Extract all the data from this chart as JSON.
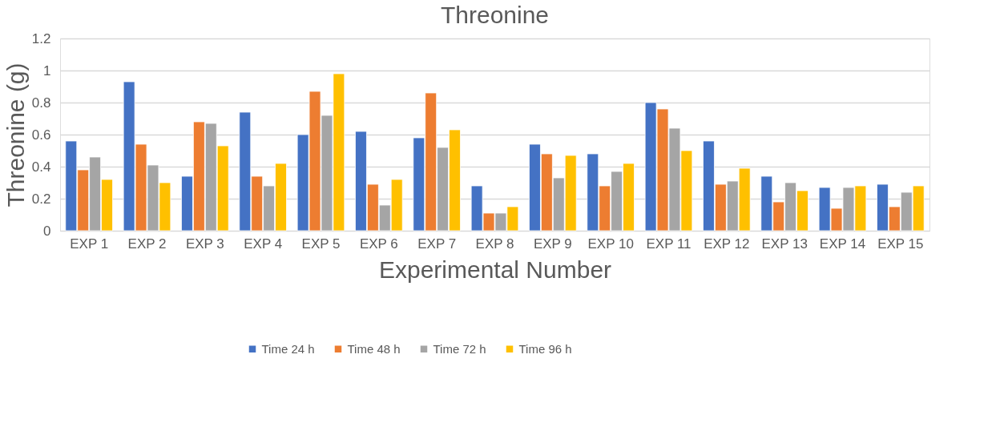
{
  "chart_data": {
    "type": "bar",
    "title": "Threonine",
    "xlabel": "Experimental Number",
    "ylabel": "Threonine  (g)",
    "categories": [
      "EXP 1",
      "EXP 2",
      "EXP 3",
      "EXP 4",
      "EXP 5",
      "EXP 6",
      "EXP 7",
      "EXP 8",
      "EXP 9",
      "EXP 10",
      "EXP 11",
      "EXP 12",
      "EXP 13",
      "EXP 14",
      "EXP 15"
    ],
    "series": [
      {
        "name": "Time 24 h",
        "color": "#4472c4",
        "values": [
          0.56,
          0.93,
          0.34,
          0.74,
          0.6,
          0.62,
          0.58,
          0.28,
          0.54,
          0.48,
          0.8,
          0.56,
          0.34,
          0.27,
          0.29
        ]
      },
      {
        "name": "Time 48 h",
        "color": "#ed7d31",
        "values": [
          0.38,
          0.54,
          0.68,
          0.34,
          0.87,
          0.29,
          0.86,
          0.11,
          0.48,
          0.28,
          0.76,
          0.29,
          0.18,
          0.14,
          0.15
        ]
      },
      {
        "name": "Time 72 h",
        "color": "#a5a5a5",
        "values": [
          0.46,
          0.41,
          0.67,
          0.28,
          0.72,
          0.16,
          0.52,
          0.11,
          0.33,
          0.37,
          0.64,
          0.31,
          0.3,
          0.27,
          0.24
        ]
      },
      {
        "name": "Time 96 h",
        "color": "#ffc000",
        "values": [
          0.32,
          0.3,
          0.53,
          0.42,
          0.98,
          0.32,
          0.63,
          0.15,
          0.47,
          0.42,
          0.5,
          0.39,
          0.25,
          0.28,
          0.28
        ]
      }
    ],
    "ylim": [
      0,
      1.2
    ],
    "yticks": [
      0,
      0.2,
      0.4,
      0.6,
      0.8,
      1,
      1.2
    ],
    "grid": "y",
    "legend": "bottom"
  }
}
